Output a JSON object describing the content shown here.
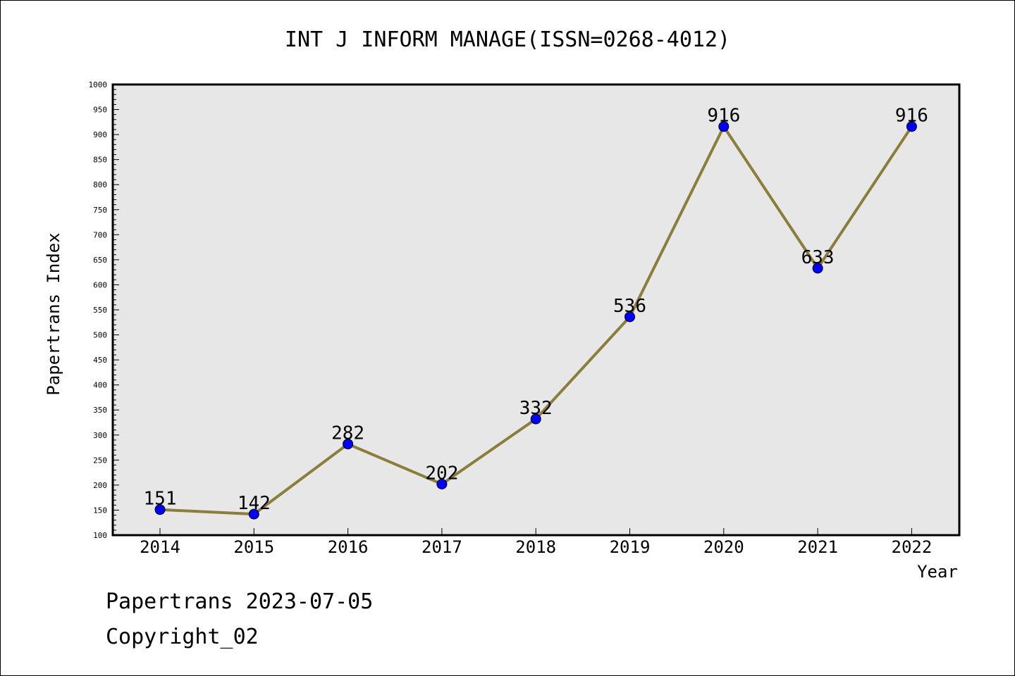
{
  "chart_data": {
    "type": "line",
    "title": "INT J INFORM MANAGE(ISSN=0268-4012)",
    "xlabel": "Year",
    "ylabel": "Papertrans Index",
    "categories": [
      "2014",
      "2015",
      "2016",
      "2017",
      "2018",
      "2019",
      "2020",
      "2021",
      "2022"
    ],
    "values": [
      151,
      142,
      282,
      202,
      332,
      536,
      916,
      633,
      916
    ],
    "ylim": [
      100,
      1000
    ],
    "yticks": [
      100,
      150,
      200,
      250,
      300,
      350,
      400,
      450,
      500,
      550,
      600,
      650,
      700,
      750,
      800,
      850,
      900,
      950,
      1000
    ],
    "grid": false,
    "colors": {
      "line": "#8b7d3a",
      "marker": "#0000ff",
      "plot_bg": "#e7e7e7"
    }
  },
  "footer": {
    "line1": "Papertrans 2023-07-05",
    "line2": "Copyright_02"
  }
}
